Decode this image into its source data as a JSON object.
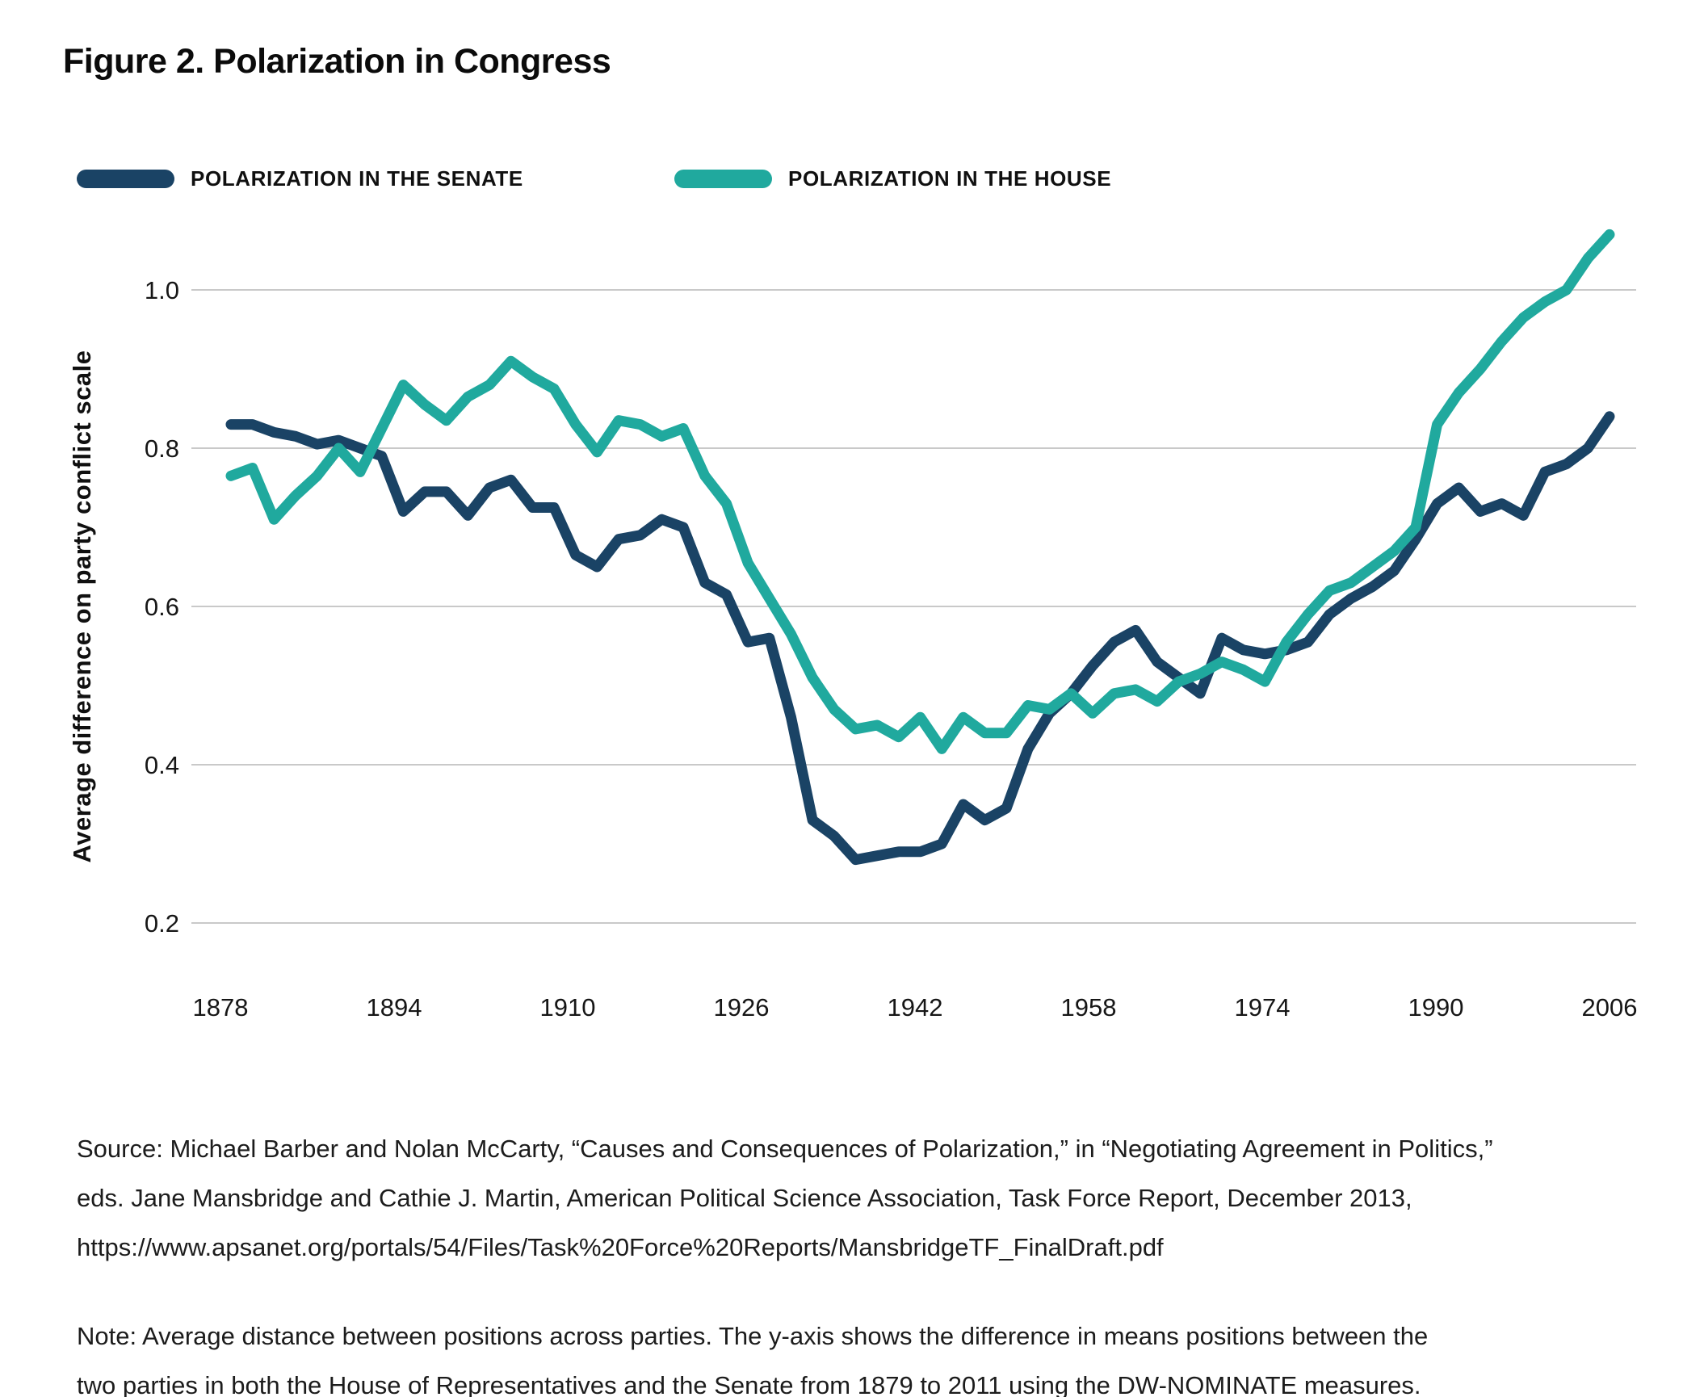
{
  "title": "Figure 2. Polarization in Congress",
  "legend": {
    "senate": {
      "label": "POLARIZATION IN THE SENATE",
      "color": "#1a4365"
    },
    "house": {
      "label": "POLARIZATION IN THE HOUSE",
      "color": "#20a99e"
    }
  },
  "source": {
    "lines": [
      "Source: Michael Barber and Nolan McCarty, “Causes and Consequences of Polarization,” in “Negotiating Agreement in Politics,”",
      "eds. Jane Mansbridge and Cathie J. Martin, American Political Science Association, Task Force Report, December 2013,",
      "https://www.apsanet.org/portals/54/Files/Task%20Force%20Reports/MansbridgeTF_FinalDraft.pdf"
    ]
  },
  "note": {
    "lines": [
      "Note: Average distance between positions across parties. The y-axis shows the difference in means positions between the",
      "two parties in both the House of Representatives and the Senate from 1879 to 2011 using the DW-NOMINATE measures."
    ]
  },
  "colors": {
    "background": "#ffffff",
    "gridline": "#c9c9c9",
    "tick_text": "#161616",
    "senate_line": "#1a4365",
    "house_line": "#20a99e"
  },
  "chart_data": {
    "type": "line",
    "title": "Figure 2. Polarization in Congress",
    "xlabel": "",
    "ylabel": "Average difference on party conflict scale",
    "legend_position": "top",
    "grid": "horizontal",
    "x_ticks": [
      1878,
      1894,
      1910,
      1926,
      1942,
      1958,
      1974,
      1990,
      2006
    ],
    "y_ticks": [
      1.0,
      0.8,
      0.6,
      0.4,
      0.2
    ],
    "ylim": [
      0.2,
      1.0
    ],
    "x": [
      1879,
      1881,
      1883,
      1885,
      1887,
      1889,
      1891,
      1893,
      1895,
      1897,
      1899,
      1901,
      1903,
      1905,
      1907,
      1909,
      1911,
      1913,
      1915,
      1917,
      1919,
      1921,
      1923,
      1925,
      1927,
      1929,
      1931,
      1933,
      1935,
      1937,
      1939,
      1941,
      1943,
      1945,
      1947,
      1949,
      1951,
      1953,
      1955,
      1957,
      1959,
      1961,
      1963,
      1965,
      1967,
      1969,
      1971,
      1973,
      1975,
      1977,
      1979,
      1981,
      1983,
      1985,
      1987,
      1989,
      1991,
      1993,
      1995,
      1997,
      1999,
      2001,
      2003,
      2005,
      2007
    ],
    "series": [
      {
        "name": "Polarization in the Senate",
        "color": "#1a4365",
        "values": [
          0.83,
          0.83,
          0.82,
          0.815,
          0.805,
          0.81,
          0.8,
          0.79,
          0.72,
          0.745,
          0.745,
          0.715,
          0.75,
          0.76,
          0.725,
          0.725,
          0.665,
          0.65,
          0.685,
          0.69,
          0.71,
          0.7,
          0.63,
          0.615,
          0.555,
          0.56,
          0.46,
          0.33,
          0.31,
          0.28,
          0.285,
          0.29,
          0.29,
          0.3,
          0.35,
          0.33,
          0.345,
          0.42,
          0.465,
          0.49,
          0.525,
          0.555,
          0.57,
          0.53,
          0.51,
          0.49,
          0.56,
          0.545,
          0.54,
          0.545,
          0.555,
          0.59,
          0.61,
          0.625,
          0.645,
          0.685,
          0.73,
          0.75,
          0.72,
          0.73,
          0.715,
          0.77,
          0.78,
          0.8,
          0.84
        ]
      },
      {
        "name": "Polarization in the House",
        "color": "#20a99e",
        "values": [
          0.765,
          0.775,
          0.71,
          0.74,
          0.765,
          0.8,
          0.77,
          0.825,
          0.88,
          0.855,
          0.835,
          0.865,
          0.88,
          0.91,
          0.89,
          0.875,
          0.83,
          0.795,
          0.835,
          0.83,
          0.815,
          0.825,
          0.765,
          0.73,
          0.655,
          0.61,
          0.565,
          0.51,
          0.47,
          0.445,
          0.45,
          0.435,
          0.46,
          0.42,
          0.46,
          0.44,
          0.44,
          0.475,
          0.47,
          0.49,
          0.465,
          0.49,
          0.495,
          0.48,
          0.505,
          0.515,
          0.53,
          0.52,
          0.505,
          0.555,
          0.59,
          0.62,
          0.63,
          0.65,
          0.67,
          0.7,
          0.83,
          0.87,
          0.9,
          0.935,
          0.965,
          0.985,
          1.0,
          1.04,
          1.07
        ]
      }
    ]
  }
}
